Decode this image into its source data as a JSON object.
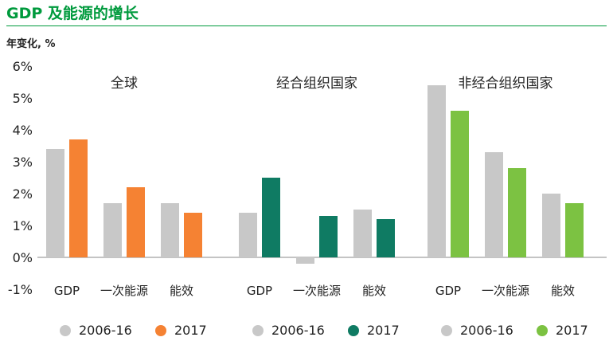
{
  "title": "GDP 及能源的增长",
  "ylabel": "年变化, %",
  "colors": {
    "title": "#009a3d",
    "grey": "#c8c8c8",
    "orange": "#f58233",
    "dark_green": "#0f7b63",
    "light_green": "#7cc242"
  },
  "chart_data": {
    "type": "bar",
    "yunit": "%",
    "ylim": [
      -1,
      6
    ],
    "yticks": [
      "-1%",
      "0%",
      "1%",
      "2%",
      "3%",
      "4%",
      "5%",
      "6%"
    ],
    "grid": false,
    "legend_position": "bottom",
    "groups": [
      {
        "title": "全球",
        "categories": [
          "GDP",
          "一次能源",
          "能效"
        ],
        "series": [
          {
            "name": "2006-16",
            "color": "#c8c8c8",
            "values": [
              3.4,
              1.7,
              1.7
            ]
          },
          {
            "name": "2017",
            "color": "#f58233",
            "values": [
              3.7,
              2.2,
              1.4
            ]
          }
        ]
      },
      {
        "title": "经合组织国家",
        "categories": [
          "GDP",
          "一次能源",
          "能效"
        ],
        "series": [
          {
            "name": "2006-16",
            "color": "#c8c8c8",
            "values": [
              1.4,
              -0.2,
              1.5
            ]
          },
          {
            "name": "2017",
            "color": "#0f7b63",
            "values": [
              2.5,
              1.3,
              1.2
            ]
          }
        ]
      },
      {
        "title": "非经合组织国家",
        "categories": [
          "GDP",
          "一次能源",
          "能效"
        ],
        "series": [
          {
            "name": "2006-16",
            "color": "#c8c8c8",
            "values": [
              5.4,
              3.3,
              2.0
            ]
          },
          {
            "name": "2017",
            "color": "#7cc242",
            "values": [
              4.6,
              2.8,
              1.7
            ]
          }
        ]
      }
    ]
  }
}
